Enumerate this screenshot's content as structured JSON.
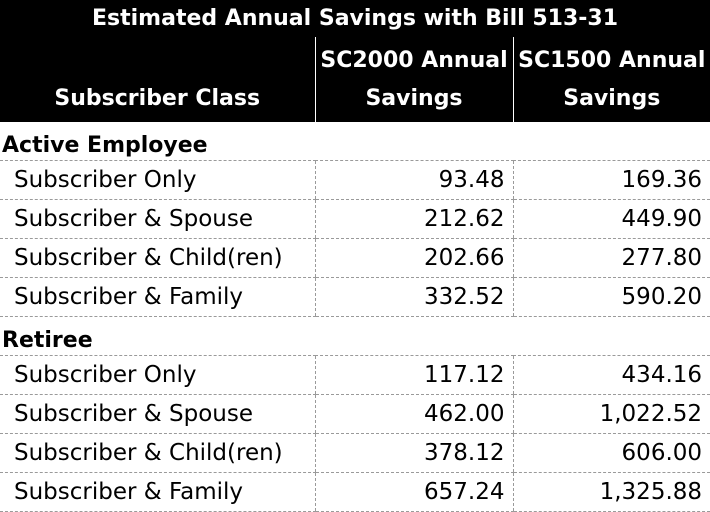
{
  "title": "Estimated Annual Savings with Bill 513-31",
  "headers": {
    "class": "Subscriber Class",
    "sc2000": "SC2000 Annual Savings",
    "sc1500": "SC1500 Annual Savings"
  },
  "sections": [
    {
      "name": "Active Employee",
      "rows": [
        {
          "label": "Subscriber Only",
          "sc2000": "93.48",
          "sc1500": "169.36"
        },
        {
          "label": "Subscriber & Spouse",
          "sc2000": "212.62",
          "sc1500": "449.90"
        },
        {
          "label": "Subscriber & Child(ren)",
          "sc2000": "202.66",
          "sc1500": "277.80"
        },
        {
          "label": "Subscriber & Family",
          "sc2000": "332.52",
          "sc1500": "590.20"
        }
      ]
    },
    {
      "name": "Retiree",
      "rows": [
        {
          "label": "Subscriber Only",
          "sc2000": "117.12",
          "sc1500": "434.16"
        },
        {
          "label": "Subscriber & Spouse",
          "sc2000": "462.00",
          "sc1500": "1,022.52"
        },
        {
          "label": "Subscriber & Child(ren)",
          "sc2000": "378.12",
          "sc1500": "606.00"
        },
        {
          "label": "Subscriber & Family",
          "sc2000": "657.24",
          "sc1500": "1,325.88"
        }
      ]
    }
  ]
}
